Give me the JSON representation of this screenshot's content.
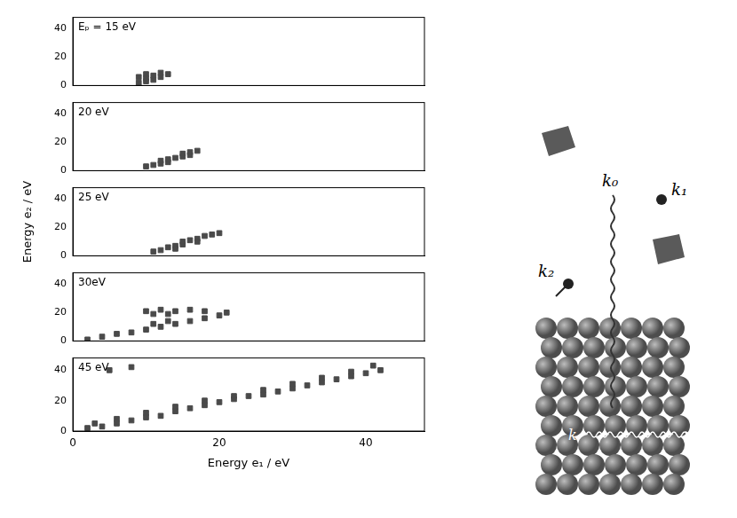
{
  "chart_data": [
    {
      "type": "scatter",
      "title": "Eₚ = 15 eV",
      "color": "#4a4a4a",
      "marker": "square",
      "grid": false,
      "tick_labels": "y",
      "xlim": [
        0,
        48
      ],
      "xticks": [
        0,
        20,
        40
      ],
      "ylim": [
        0,
        48
      ],
      "yticks": [
        0,
        20,
        40
      ],
      "points": [
        [
          9,
          2
        ],
        [
          10,
          3
        ],
        [
          10,
          5
        ],
        [
          11,
          4
        ],
        [
          11,
          7
        ],
        [
          12,
          6
        ],
        [
          12,
          9
        ],
        [
          13,
          8
        ],
        [
          10,
          8
        ],
        [
          9,
          6
        ]
      ]
    },
    {
      "type": "scatter",
      "title": "20 eV",
      "color": "#4a4a4a",
      "marker": "square",
      "grid": false,
      "tick_labels": "y",
      "xlim": [
        0,
        48
      ],
      "xticks": [
        0,
        20,
        40
      ],
      "ylim": [
        0,
        48
      ],
      "yticks": [
        0,
        20,
        40
      ],
      "points": [
        [
          10,
          3
        ],
        [
          11,
          4
        ],
        [
          12,
          5
        ],
        [
          12,
          7
        ],
        [
          13,
          6
        ],
        [
          13,
          8
        ],
        [
          14,
          9
        ],
        [
          15,
          10
        ],
        [
          15,
          12
        ],
        [
          16,
          11
        ],
        [
          16,
          13
        ],
        [
          17,
          14
        ]
      ]
    },
    {
      "type": "scatter",
      "title": "25 eV",
      "color": "#4a4a4a",
      "marker": "square",
      "grid": false,
      "tick_labels": "y",
      "ylabel": "Energy e₂ / eV",
      "xlim": [
        0,
        48
      ],
      "xticks": [
        0,
        20,
        40
      ],
      "ylim": [
        0,
        48
      ],
      "yticks": [
        0,
        20,
        40
      ],
      "points": [
        [
          11,
          3
        ],
        [
          12,
          4
        ],
        [
          13,
          6
        ],
        [
          14,
          7
        ],
        [
          14,
          5
        ],
        [
          15,
          8
        ],
        [
          15,
          10
        ],
        [
          16,
          11
        ],
        [
          17,
          12
        ],
        [
          17,
          10
        ],
        [
          18,
          14
        ],
        [
          19,
          15
        ],
        [
          20,
          16
        ]
      ]
    },
    {
      "type": "scatter",
      "title": "30eV",
      "color": "#4a4a4a",
      "marker": "square",
      "grid": false,
      "tick_labels": "y",
      "xlim": [
        0,
        48
      ],
      "xticks": [
        0,
        20,
        40
      ],
      "ylim": [
        0,
        48
      ],
      "yticks": [
        0,
        20,
        40
      ],
      "points": [
        [
          2,
          1
        ],
        [
          4,
          3
        ],
        [
          6,
          5
        ],
        [
          8,
          6
        ],
        [
          10,
          8
        ],
        [
          12,
          10
        ],
        [
          14,
          12
        ],
        [
          16,
          14
        ],
        [
          18,
          16
        ],
        [
          20,
          18
        ],
        [
          21,
          20
        ],
        [
          13,
          14
        ],
        [
          11,
          12
        ],
        [
          10,
          21
        ],
        [
          12,
          22
        ],
        [
          14,
          21
        ],
        [
          11,
          19
        ],
        [
          13,
          19
        ],
        [
          16,
          22
        ],
        [
          18,
          21
        ]
      ]
    },
    {
      "type": "scatter",
      "title": "45 eV",
      "color": "#4a4a4a",
      "marker": "square",
      "grid": false,
      "xlabel": "Energy e₁ / eV",
      "xlim": [
        0,
        48
      ],
      "xticks": [
        0,
        20,
        40
      ],
      "ylim": [
        0,
        48
      ],
      "yticks": [
        0,
        20,
        40
      ],
      "points": [
        [
          2,
          2
        ],
        [
          4,
          3
        ],
        [
          6,
          5
        ],
        [
          8,
          7
        ],
        [
          10,
          9
        ],
        [
          12,
          10
        ],
        [
          14,
          13
        ],
        [
          16,
          15
        ],
        [
          18,
          17
        ],
        [
          20,
          19
        ],
        [
          22,
          21
        ],
        [
          24,
          23
        ],
        [
          26,
          24
        ],
        [
          28,
          26
        ],
        [
          30,
          28
        ],
        [
          32,
          30
        ],
        [
          34,
          32
        ],
        [
          36,
          34
        ],
        [
          38,
          36
        ],
        [
          40,
          38
        ],
        [
          42,
          40
        ],
        [
          41,
          43
        ],
        [
          38,
          39
        ],
        [
          34,
          35
        ],
        [
          30,
          31
        ],
        [
          26,
          27
        ],
        [
          22,
          23
        ],
        [
          18,
          20
        ],
        [
          14,
          16
        ],
        [
          10,
          12
        ],
        [
          6,
          8
        ],
        [
          3,
          5
        ],
        [
          5,
          40
        ],
        [
          8,
          42
        ]
      ]
    }
  ],
  "diagram": {
    "labels": {
      "photon": "k₀",
      "electron1": "k₁",
      "electron2": "k₂",
      "surface": "k"
    }
  }
}
